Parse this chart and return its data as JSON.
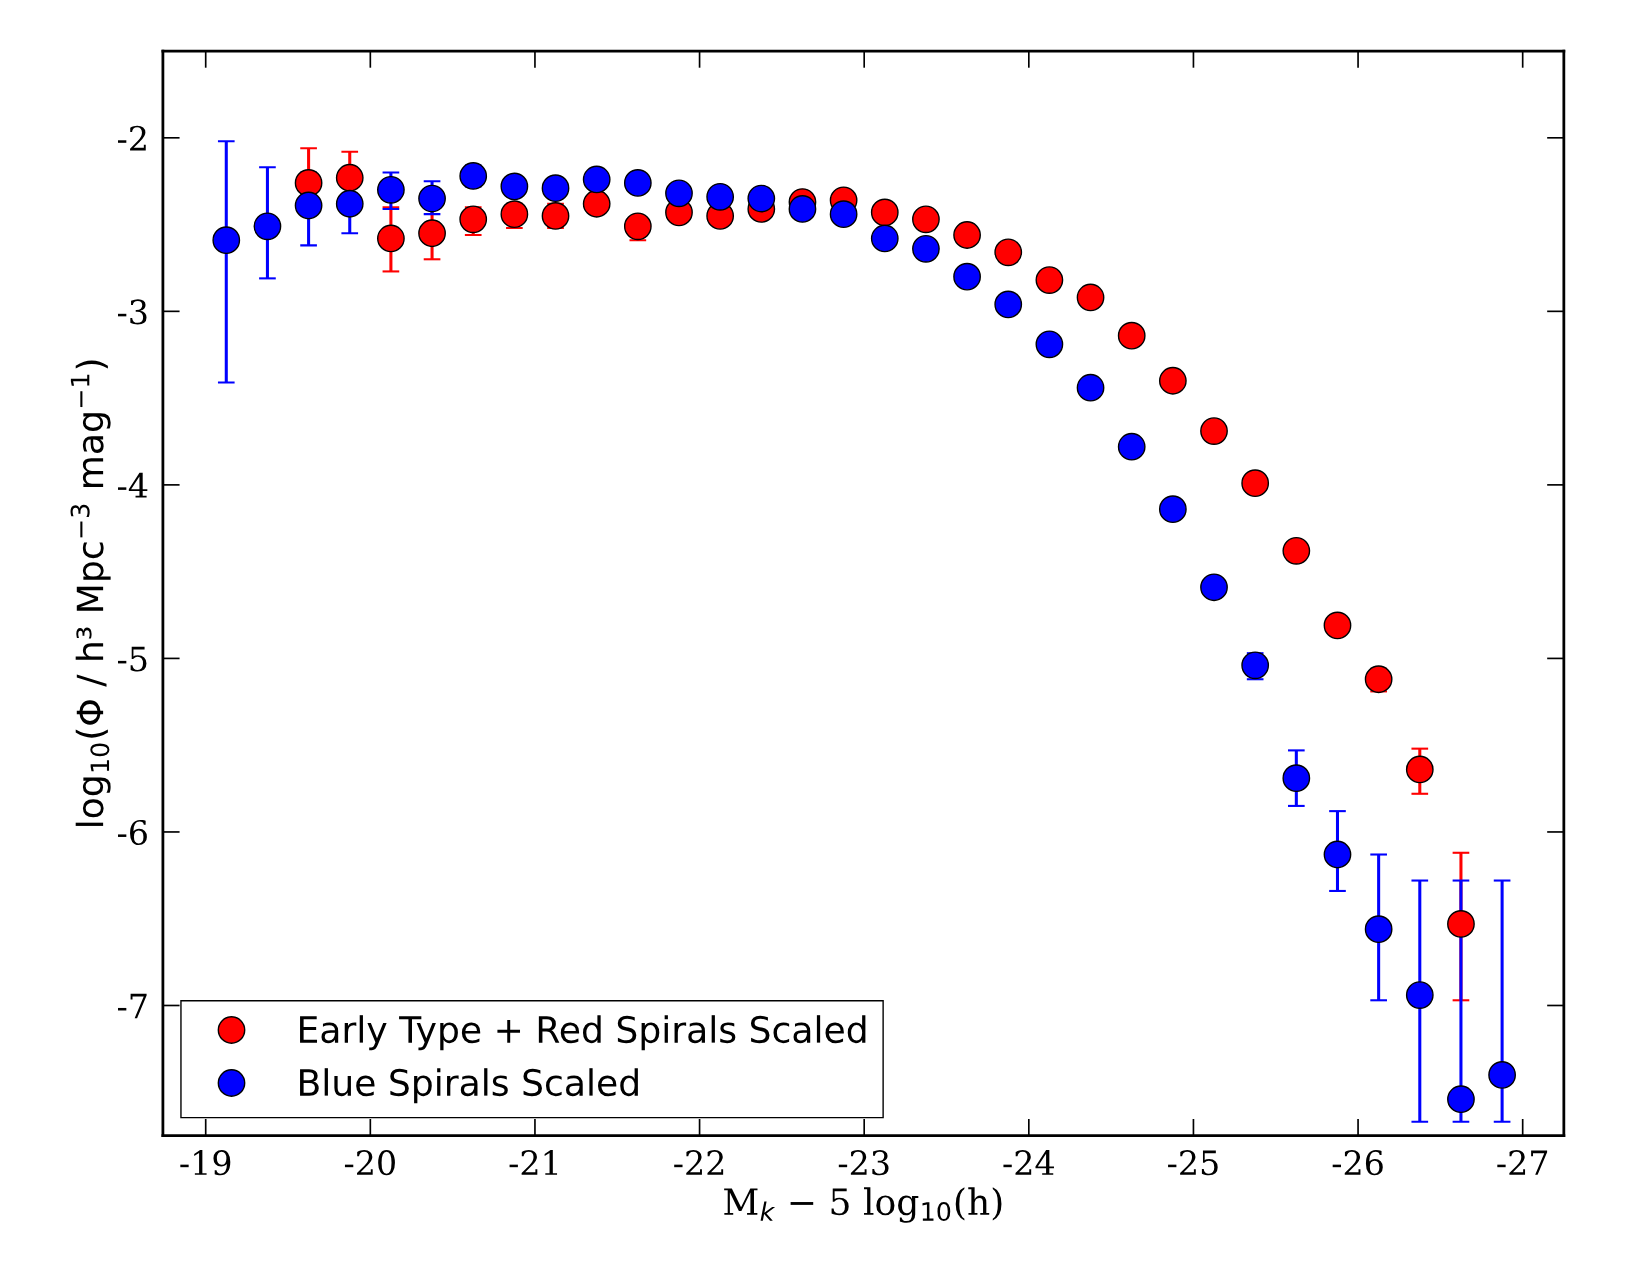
{
  "chart_data": {
    "type": "scatter",
    "xlabel": "M$_{k}$ − 5 log$_{10}$(h)",
    "ylabel": "log$_{10}$(Φ / h³ Mpc$^{−3}$ mag$^{−1}$)",
    "xlim": [
      -18.74,
      -27.25
    ],
    "ylim": [
      -7.75,
      -1.5
    ],
    "xticks": [
      -19,
      -20,
      -21,
      -22,
      -23,
      -24,
      -25,
      -26,
      -27
    ],
    "yticks": [
      -2,
      -3,
      -4,
      -5,
      -6,
      -7
    ],
    "grid": false,
    "legend": "bottom left",
    "marker": "circle",
    "series": [
      {
        "name": "Early Type + Red Spirals Scaled",
        "color": "#ff0000",
        "x": [
          -19.625,
          -19.875,
          -20.125,
          -20.375,
          -20.625,
          -20.875,
          -21.125,
          -21.375,
          -21.625,
          -21.875,
          -22.125,
          -22.375,
          -22.625,
          -22.875,
          -23.125,
          -23.375,
          -23.625,
          -23.875,
          -24.125,
          -24.375,
          -24.625,
          -24.875,
          -25.125,
          -25.375,
          -25.625,
          -25.875,
          -26.125,
          -26.375,
          -26.625
        ],
        "values": [
          -2.26,
          -2.23,
          -2.58,
          -2.55,
          -2.47,
          -2.44,
          -2.45,
          -2.38,
          -2.51,
          -2.43,
          -2.45,
          -2.41,
          -2.37,
          -2.36,
          -2.43,
          -2.47,
          -2.56,
          -2.66,
          -2.82,
          -2.92,
          -3.14,
          -3.4,
          -3.69,
          -3.99,
          -4.38,
          -4.81,
          -5.12,
          -5.64,
          -6.53
        ],
        "errors": [
          [
            -2.44,
            -2.06
          ],
          [
            -2.23,
            -2.08
          ],
          [
            -2.77,
            -2.4
          ],
          [
            -2.7,
            -2.4
          ],
          [
            -2.56,
            -2.4
          ],
          [
            -2.52,
            -2.38
          ],
          [
            -2.52,
            -2.38
          ],
          null,
          [
            -2.59,
            -2.51
          ],
          null,
          null,
          null,
          null,
          null,
          null,
          null,
          null,
          null,
          null,
          null,
          null,
          null,
          null,
          null,
          null,
          null,
          [
            -5.19,
            -5.06
          ],
          [
            -5.78,
            -5.52
          ],
          [
            -6.97,
            -6.12
          ]
        ]
      },
      {
        "name": "Blue Spirals Scaled",
        "color": "#0000ff",
        "x": [
          -19.125,
          -19.375,
          -19.625,
          -19.875,
          -20.125,
          -20.375,
          -20.625,
          -20.875,
          -21.125,
          -21.375,
          -21.625,
          -21.875,
          -22.125,
          -22.375,
          -22.625,
          -22.875,
          -23.125,
          -23.375,
          -23.625,
          -23.875,
          -24.125,
          -24.375,
          -24.625,
          -24.875,
          -25.125,
          -25.375,
          -25.625,
          -25.875,
          -26.125,
          -26.375,
          -26.625,
          -26.875
        ],
        "values": [
          -2.59,
          -2.51,
          -2.39,
          -2.38,
          -2.3,
          -2.35,
          -2.22,
          -2.28,
          -2.29,
          -2.24,
          -2.26,
          -2.32,
          -2.34,
          -2.35,
          -2.41,
          -2.44,
          -2.58,
          -2.64,
          -2.8,
          -2.96,
          -3.19,
          -3.44,
          -3.78,
          -4.14,
          -4.59,
          -5.04,
          -5.69,
          -6.13,
          -6.56,
          -6.94,
          -7.54,
          -7.4
        ],
        "errors": [
          [
            -3.41,
            -2.02
          ],
          [
            -2.81,
            -2.17
          ],
          [
            -2.62,
            -2.2
          ],
          [
            -2.55,
            -2.38
          ],
          [
            -2.41,
            -2.2
          ],
          [
            -2.44,
            -2.25
          ],
          [
            -2.28,
            -2.16
          ],
          null,
          null,
          null,
          null,
          null,
          null,
          null,
          null,
          null,
          null,
          null,
          null,
          null,
          null,
          null,
          null,
          null,
          null,
          [
            -5.12,
            -4.97
          ],
          [
            -5.85,
            -5.53
          ],
          [
            -6.34,
            -5.88
          ],
          [
            -6.97,
            -6.13
          ],
          [
            -7.67,
            -6.28
          ],
          [
            -7.67,
            -6.28
          ],
          [
            -7.67,
            -6.28
          ]
        ]
      }
    ]
  }
}
